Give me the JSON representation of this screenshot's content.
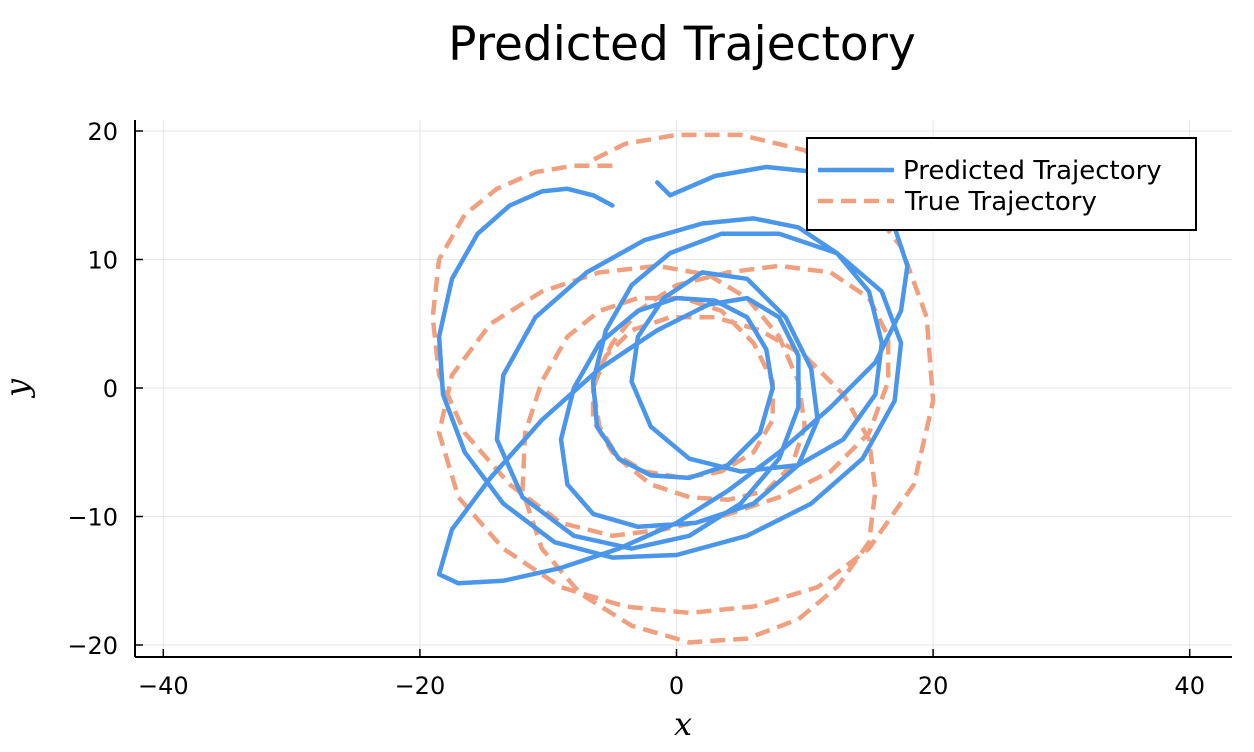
{
  "chart_data": {
    "type": "line",
    "title": "Predicted Trajectory",
    "xlabel": "x",
    "ylabel": "y",
    "xlim": [
      -42,
      43
    ],
    "ylim": [
      -21,
      21
    ],
    "xticks": [
      -40,
      -20,
      0,
      20,
      40
    ],
    "yticks": [
      -20,
      -10,
      0,
      10,
      20
    ],
    "xtick_labels": [
      "−40",
      "−20",
      "0",
      "20",
      "40"
    ],
    "ytick_labels": [
      "−20",
      "−10",
      "0",
      "10",
      "20"
    ],
    "grid": true,
    "legend_position": "top-right",
    "series": [
      {
        "name": "Predicted Trajectory",
        "style": "solid",
        "color": "#4a96ea",
        "x": [
          -5.0,
          -6.5,
          -8.5,
          -10.5,
          -13.0,
          -15.5,
          -17.5,
          -18.5,
          -18.2,
          -16.5,
          -13.5,
          -9.5,
          -5.0,
          0.0,
          5.5,
          10.5,
          14.5,
          17.0,
          17.5,
          16.0,
          12.5,
          8.0,
          3.5,
          -0.5,
          -3.5,
          -5.5,
          -6.5,
          -6.2,
          -4.5,
          -2.0,
          1.0,
          4.0,
          6.5,
          7.5,
          7.0,
          5.5,
          3.0,
          0.0,
          -3.0,
          -6.0,
          -8.0,
          -9.0,
          -8.5,
          -6.5,
          -3.0,
          1.5,
          6.0,
          9.5,
          11.0,
          10.5,
          8.5,
          5.5,
          2.0,
          -1.0,
          -3.0,
          -3.5,
          -2.0,
          1.0,
          5.0,
          9.5,
          13.0,
          15.5,
          16.0,
          15.0,
          12.5,
          9.5,
          6.0,
          2.0,
          -2.5,
          -7.0,
          -11.0,
          -13.5,
          -14.0,
          -12.0,
          -8.0,
          -3.5,
          1.0,
          5.0,
          8.0,
          9.5,
          9.5,
          8.0,
          5.5,
          2.5,
          -1.5,
          -6.0,
          -10.5,
          -14.5,
          -17.5,
          -18.5,
          -17.0,
          -13.5,
          -9.0,
          -4.5,
          0.0,
          4.0,
          8.0,
          12.0,
          15.5,
          17.5,
          18.0,
          17.0,
          14.5,
          11.0,
          7.0,
          3.0,
          -0.5,
          -1.5
        ],
        "y": [
          14.2,
          15.0,
          15.5,
          15.3,
          14.2,
          12.0,
          8.5,
          4.0,
          -0.5,
          -5.0,
          -9.0,
          -12.0,
          -13.2,
          -13.0,
          -11.5,
          -9.0,
          -5.5,
          -1.0,
          3.5,
          7.5,
          10.5,
          12.0,
          12.0,
          10.5,
          8.0,
          4.5,
          0.5,
          -3.0,
          -5.5,
          -6.8,
          -7.0,
          -6.0,
          -3.5,
          0.0,
          3.0,
          5.5,
          6.8,
          7.0,
          6.0,
          3.5,
          0.0,
          -4.0,
          -7.5,
          -9.8,
          -10.8,
          -10.5,
          -9.0,
          -6.0,
          -2.5,
          1.5,
          5.5,
          8.5,
          9.0,
          7.0,
          4.0,
          0.5,
          -3.0,
          -5.5,
          -6.5,
          -6.0,
          -4.0,
          -0.5,
          3.5,
          7.5,
          10.5,
          12.5,
          13.2,
          12.8,
          11.5,
          9.0,
          5.5,
          1.0,
          -4.0,
          -8.5,
          -11.5,
          -12.5,
          -11.5,
          -9.0,
          -5.5,
          -1.5,
          2.5,
          5.5,
          7.0,
          6.5,
          4.5,
          1.5,
          -2.5,
          -7.0,
          -11.0,
          -14.5,
          -15.2,
          -15.0,
          -14.0,
          -12.5,
          -10.5,
          -8.0,
          -5.0,
          -1.5,
          2.0,
          6.0,
          9.5,
          12.5,
          15.0,
          16.8,
          17.2,
          16.5,
          15.0,
          16.0
        ]
      },
      {
        "name": "True Trajectory",
        "style": "dashed",
        "color": "#f0a07e",
        "x": [
          -5.0,
          -8.0,
          -11.0,
          -14.0,
          -16.5,
          -18.5,
          -19.0,
          -18.5,
          -16.5,
          -13.0,
          -9.0,
          -5.0,
          -1.0,
          3.5,
          8.0,
          12.0,
          15.0,
          16.5,
          16.5,
          15.0,
          12.0,
          8.0,
          4.0,
          0.0,
          -3.0,
          -5.0,
          -6.5,
          -6.5,
          -5.0,
          -2.5,
          0.5,
          3.5,
          6.0,
          7.5,
          7.5,
          6.0,
          3.5,
          0.5,
          -3.0,
          -6.0,
          -8.5,
          -10.5,
          -11.8,
          -12.0,
          -10.5,
          -7.5,
          -3.5,
          1.0,
          5.5,
          9.5,
          12.5,
          15.0,
          15.5,
          15.0,
          13.0,
          10.0,
          6.5,
          3.0,
          -0.5,
          -3.5,
          -5.5,
          -6.5,
          -6.0,
          -4.5,
          -2.0,
          1.0,
          4.0,
          7.0,
          9.0,
          10.0,
          9.5,
          8.0,
          5.5,
          2.5,
          -1.5,
          -6.0,
          -10.5,
          -14.5,
          -17.5,
          -18.5,
          -17.0,
          -13.5,
          -9.0,
          -4.0,
          1.0,
          6.0,
          11.0,
          15.0,
          18.5,
          20.0,
          19.5,
          17.5,
          14.0,
          10.0,
          5.0,
          0.0,
          -4.0,
          -7.0
        ],
        "y": [
          17.3,
          17.3,
          16.8,
          15.5,
          13.5,
          10.0,
          5.5,
          1.0,
          -3.5,
          -7.5,
          -10.5,
          -11.5,
          -11.0,
          -10.0,
          -8.5,
          -6.5,
          -3.5,
          0.5,
          4.0,
          7.0,
          9.0,
          9.5,
          9.0,
          8.0,
          6.0,
          3.5,
          0.5,
          -2.5,
          -5.0,
          -6.5,
          -7.0,
          -6.5,
          -5.0,
          -2.5,
          0.5,
          3.5,
          6.0,
          7.0,
          7.0,
          6.0,
          4.0,
          0.5,
          -3.5,
          -8.0,
          -12.5,
          -16.0,
          -18.5,
          -19.8,
          -19.5,
          -18.0,
          -15.5,
          -12.0,
          -8.0,
          -4.0,
          -0.5,
          2.5,
          4.5,
          5.5,
          5.5,
          4.5,
          2.5,
          0.0,
          -3.0,
          -5.5,
          -7.5,
          -8.5,
          -8.7,
          -8.0,
          -6.0,
          -3.0,
          0.5,
          4.0,
          7.0,
          8.8,
          9.5,
          9.0,
          7.5,
          5.0,
          1.0,
          -3.5,
          -8.5,
          -12.5,
          -15.5,
          -17.0,
          -17.5,
          -17.0,
          -15.5,
          -12.5,
          -7.5,
          -1.0,
          5.5,
          11.0,
          15.5,
          18.5,
          19.7,
          19.7,
          19.0,
          17.5
        ]
      }
    ]
  }
}
